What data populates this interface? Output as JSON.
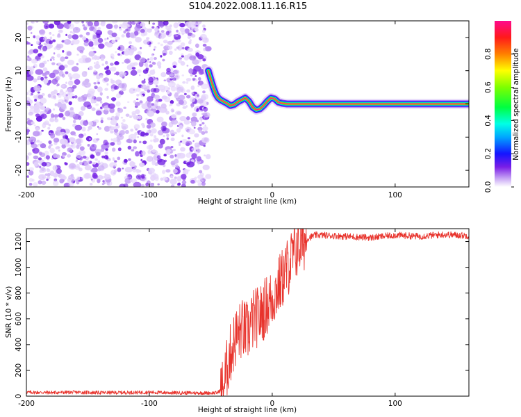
{
  "figure_title": "S104.2022.008.11.16.R15",
  "colors": {
    "snr_line": "#e8332c",
    "background": "#ffffff",
    "axis": "#000000",
    "noise_dark": "#6a18e0",
    "noise_light": "#cdb2f5"
  },
  "chart_data": [
    {
      "type": "heatmap",
      "title": "",
      "xlabel": "Height of straight line (km)",
      "ylabel": "Frequency (Hz)",
      "xlim": [
        -200,
        160
      ],
      "ylim": [
        -25,
        25
      ],
      "x_ticks": [
        -200,
        -100,
        0,
        100
      ],
      "y_ticks": [
        -20,
        -10,
        0,
        10,
        20
      ],
      "noise_region_x": [
        -200,
        -52
      ],
      "signal_trace": {
        "x": [
          -52,
          -50,
          -48,
          -46,
          -44,
          -42,
          -40,
          -37,
          -34,
          -31,
          -28,
          -25,
          -22,
          -19,
          -16,
          -13,
          -10,
          -7,
          -4,
          -1,
          2,
          5,
          8,
          12,
          16,
          20,
          40,
          80,
          120,
          160
        ],
        "frequency_hz": [
          10,
          7.5,
          5,
          3,
          1.8,
          1.2,
          0.8,
          0.2,
          -0.5,
          -0.2,
          0.6,
          1.2,
          1.8,
          0.8,
          -1,
          -1.8,
          -1.5,
          -0.5,
          0.8,
          1.8,
          1.5,
          0.5,
          0.2,
          0,
          0,
          0,
          0,
          0,
          0,
          0
        ]
      },
      "colorbar": {
        "label": "Normalized spectral amplitude",
        "range": [
          0,
          1
        ],
        "ticks": [
          "0.0",
          "0.2",
          "0.4",
          "0.6",
          "0.8"
        ],
        "tick_values": [
          0,
          0.2,
          0.4,
          0.6,
          0.8
        ],
        "colormap": "hsv_rainbow"
      }
    },
    {
      "type": "line",
      "title": "",
      "xlabel": "Height of straight line (km)",
      "ylabel": "SNR (10 * v/v)",
      "xlim": [
        -200,
        160
      ],
      "ylim": [
        0,
        1300
      ],
      "x_ticks": [
        -200,
        -100,
        0,
        100
      ],
      "y_ticks": [
        0,
        200,
        400,
        600,
        800,
        1000,
        1200
      ],
      "series": [
        {
          "name": "SNR",
          "x": [
            -200,
            -180,
            -160,
            -140,
            -120,
            -100,
            -80,
            -60,
            -45,
            -40,
            -35,
            -30,
            -25,
            -20,
            -15,
            -10,
            -5,
            0,
            5,
            10,
            15,
            20,
            25,
            30,
            35,
            40,
            60,
            80,
            90,
            100,
            120,
            140,
            160
          ],
          "values": [
            30,
            28,
            30,
            27,
            28,
            30,
            26,
            25,
            25,
            60,
            300,
            450,
            520,
            500,
            600,
            620,
            700,
            760,
            850,
            950,
            1050,
            1150,
            1200,
            1230,
            1250,
            1250,
            1240,
            1230,
            1240,
            1250,
            1240,
            1255,
            1245
          ]
        }
      ]
    }
  ]
}
